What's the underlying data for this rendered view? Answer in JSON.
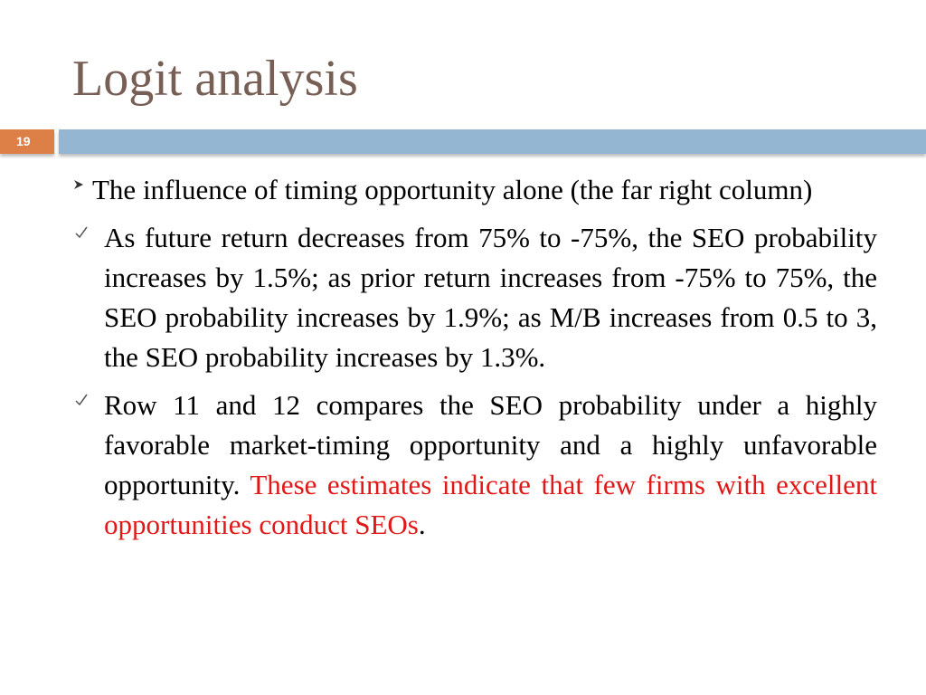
{
  "title": "Logit analysis",
  "slide_number": "19",
  "bullets": [
    {
      "text": "The influence of timing opportunity alone (the far right column)"
    },
    {
      "text": "As future return decreases from 75% to -75%, the SEO probability increases by 1.5%; as prior return increases from -75% to 75%, the SEO probability increases by 1.9%; as M/B increases from 0.5 to 3, the SEO probability increases by 1.3%."
    },
    {
      "text": "Row 11 and 12 compares the SEO probability under a highly favorable market-timing opportunity and a highly unfavorable opportunity. ",
      "highlight": "These estimates indicate that few firms with excellent opportunities conduct SEOs",
      "end": "."
    }
  ]
}
